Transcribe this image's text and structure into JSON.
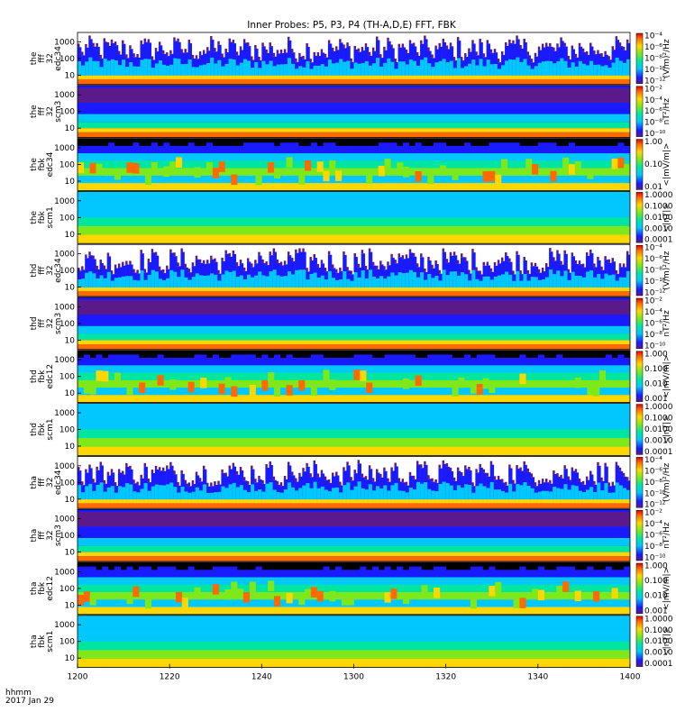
{
  "chart_data": {
    "type": "heatmap",
    "title": "Inner Probes: P5, P3, P4 (TH-A,D,E) FFT, FBK",
    "time_label": "hhmm",
    "date_label": "2017 Jan 29",
    "x_ticks": [
      "1200",
      "1220",
      "1240",
      "1300",
      "1320",
      "1340",
      "1400"
    ],
    "y_ticks": [
      "10",
      "100",
      "1000"
    ],
    "panels": [
      {
        "label": [
          "the",
          "fff",
          "32",
          "edc34"
        ],
        "unit": "(V/m)²/Hz",
        "cb_ticks": [
          "10⁻¹²",
          "10⁻¹⁰",
          "10⁻⁸",
          "10⁻⁶",
          "10⁻⁴"
        ],
        "style": "fft_e"
      },
      {
        "label": [
          "the",
          "fff",
          "32",
          "scm3"
        ],
        "unit": "nT²/Hz",
        "cb_ticks": [
          "10⁻¹⁰",
          "10⁻⁸",
          "10⁻⁶",
          "10⁻⁴",
          "10⁻²"
        ],
        "style": "fft_b"
      },
      {
        "label": [
          "the",
          "fbk",
          "edc34"
        ],
        "unit": "<|mV/m|>",
        "cb_ticks": [
          "0.01",
          "0.10",
          "1.00"
        ],
        "style": "fbk_e"
      },
      {
        "label": [
          "the",
          "fbk",
          "scm1"
        ],
        "unit": "<|nT|>",
        "cb_ticks": [
          "0.0001",
          "0.0010",
          "0.0100",
          "0.1000",
          "1.0000"
        ],
        "style": "fbk_b"
      },
      {
        "label": [
          "thd",
          "fff",
          "32",
          "edc34"
        ],
        "unit": "(V/m)²/Hz",
        "cb_ticks": [
          "10⁻¹²",
          "10⁻¹⁰",
          "10⁻⁸",
          "10⁻⁶",
          "10⁻⁴"
        ],
        "style": "fft_e"
      },
      {
        "label": [
          "thd",
          "fff",
          "32",
          "scm3"
        ],
        "unit": "nT²/Hz",
        "cb_ticks": [
          "10⁻¹⁰",
          "10⁻⁸",
          "10⁻⁶",
          "10⁻⁴",
          "10⁻²"
        ],
        "style": "fft_b"
      },
      {
        "label": [
          "thd",
          "fbk",
          "edc12"
        ],
        "unit": "<|mV/m|>",
        "cb_ticks": [
          "0.001",
          "0.010",
          "0.100",
          "1.000"
        ],
        "style": "fbk_e"
      },
      {
        "label": [
          "thd",
          "fbk",
          "scm1"
        ],
        "unit": "<|nT|>",
        "cb_ticks": [
          "0.0001",
          "0.0010",
          "0.0100",
          "0.1000",
          "1.0000"
        ],
        "style": "fbk_b"
      },
      {
        "label": [
          "tha",
          "fff",
          "32",
          "edc34"
        ],
        "unit": "(V/m)²/Hz",
        "cb_ticks": [
          "10⁻¹²",
          "10⁻¹⁰",
          "10⁻⁸",
          "10⁻⁶",
          "10⁻⁴"
        ],
        "style": "fft_e"
      },
      {
        "label": [
          "tha",
          "fff",
          "32",
          "scm3"
        ],
        "unit": "nT²/Hz",
        "cb_ticks": [
          "10⁻¹⁰",
          "10⁻⁸",
          "10⁻⁶",
          "10⁻⁴",
          "10⁻²"
        ],
        "style": "fft_b"
      },
      {
        "label": [
          "tha",
          "fbk",
          "edc12"
        ],
        "unit": "<|mV/m|>",
        "cb_ticks": [
          "0.001",
          "0.010",
          "0.100",
          "1.000"
        ],
        "style": "fbk_e"
      },
      {
        "label": [
          "tha",
          "fbk",
          "scm1"
        ],
        "unit": "<|nT|>",
        "cb_ticks": [
          "0.0001",
          "0.0010",
          "0.0100",
          "0.1000",
          "1.0000"
        ],
        "style": "fbk_b"
      }
    ]
  }
}
